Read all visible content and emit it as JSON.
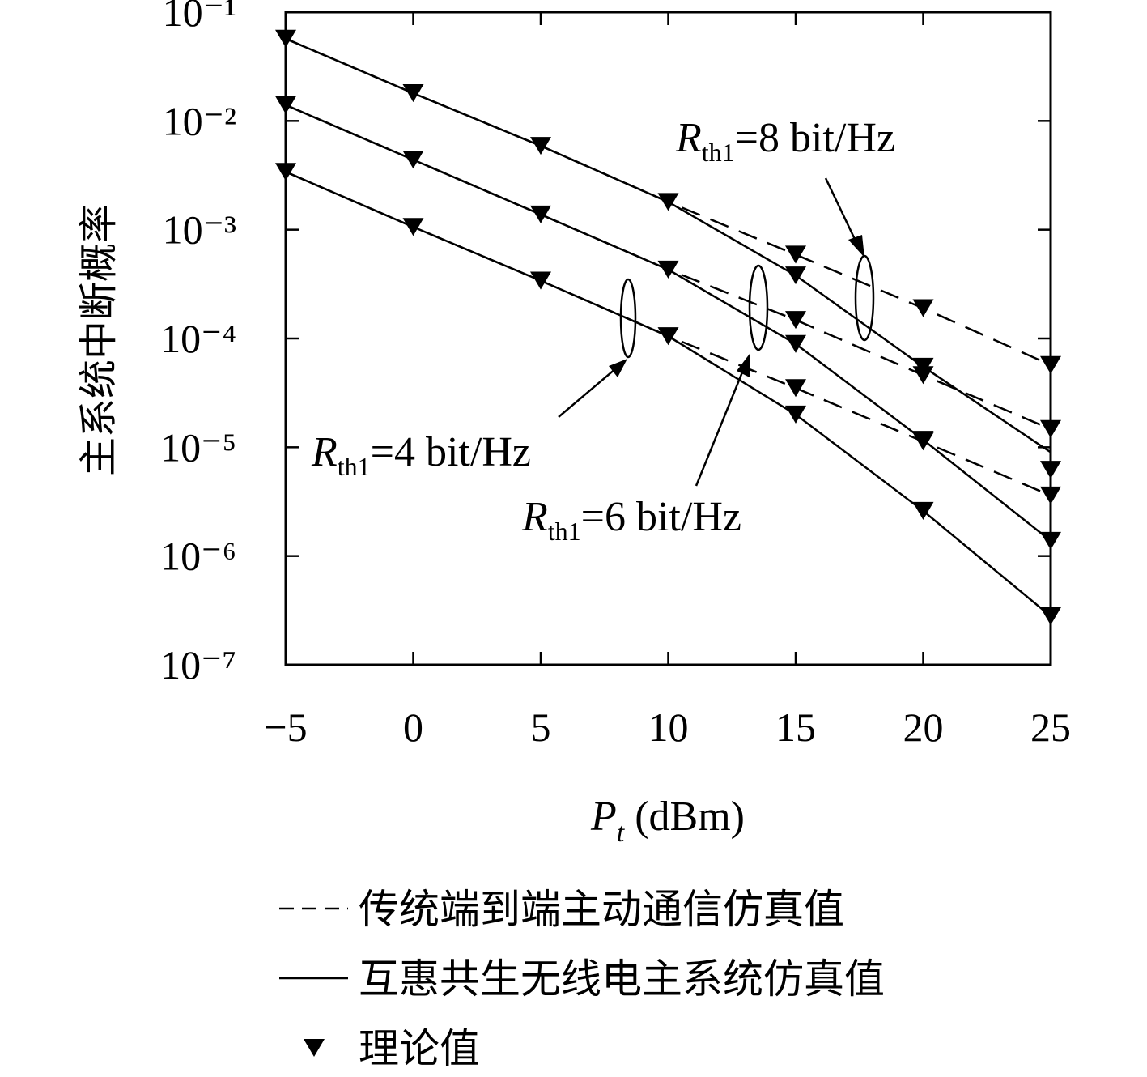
{
  "chart_data": {
    "type": "line",
    "log_y": true,
    "ylabel": "主系统中断概率",
    "xlabel": {
      "main": "P",
      "sub": "t",
      "rest": " (dBm)"
    },
    "x": [
      -5,
      0,
      5,
      10,
      15,
      20,
      25
    ],
    "xlim": [
      -5,
      25
    ],
    "xticks": [
      {
        "value": -5,
        "label": "−5"
      },
      0,
      5,
      10,
      15,
      20,
      25
    ],
    "ylim": [
      1e-07,
      0.1
    ],
    "yticks": [
      {
        "value": 0.1,
        "label": "10⁻¹"
      },
      {
        "value": 0.01,
        "label": "10⁻²"
      },
      {
        "value": 0.001,
        "label": "10⁻³"
      },
      {
        "value": 0.0001,
        "label": "10⁻⁴"
      },
      {
        "value": 1e-05,
        "label": "10⁻⁵"
      },
      {
        "value": 1e-06,
        "label": "10⁻⁶"
      },
      {
        "value": 1e-07,
        "label": "10⁻⁷"
      }
    ],
    "color": "#000000",
    "series": [
      {
        "name": "传统端到端主动通信仿真值",
        "style": "dashed",
        "lines": [
          [
            0.057,
            0.018,
            0.0059,
            0.0018,
            0.00059,
            0.00019,
            5.7e-05
          ],
          [
            0.014,
            0.0044,
            0.00138,
            0.00043,
            0.000148,
            4.6e-05,
            1.47e-05
          ],
          [
            0.0034,
            0.00106,
            0.00034,
            0.000105,
            3.5e-05,
            1.13e-05,
            3.6e-06
          ]
        ]
      },
      {
        "name": "互惠共生无线电主系统仿真值",
        "style": "solid",
        "lines": [
          [
            0.057,
            0.018,
            0.0059,
            0.0018,
            0.00038,
            5.5e-05,
            9e-06
          ],
          [
            0.014,
            0.0044,
            0.00138,
            0.00043,
            8.9e-05,
            1.17e-05,
            1.38e-06
          ],
          [
            0.0034,
            0.00106,
            0.00034,
            0.000105,
            2e-05,
            2.6e-06,
            2.8e-07
          ]
        ]
      },
      {
        "name": "理论值",
        "style": "marker",
        "lines": [
          [
            null,
            null,
            null,
            null,
            0.00059,
            0.00019,
            5.7e-05
          ],
          [
            null,
            null,
            null,
            null,
            0.000148,
            4.6e-05,
            1.47e-05
          ],
          [
            null,
            null,
            null,
            null,
            3.5e-05,
            1.13e-05,
            3.6e-06
          ],
          [
            0.057,
            0.018,
            0.0059,
            0.0018,
            0.00038,
            5.5e-05,
            6.2e-06
          ],
          [
            0.014,
            0.0044,
            0.00138,
            0.00043,
            8.9e-05,
            1.17e-05,
            1.38e-06
          ],
          [
            0.0034,
            0.00106,
            0.00034,
            0.000105,
            2e-05,
            2.6e-06,
            2.8e-07
          ]
        ]
      }
    ],
    "annotations": [
      {
        "main": "R",
        "sub": "th1",
        "rest": "=8 bit/Hz"
      },
      {
        "main": "R",
        "sub": "th1",
        "rest": "=6 bit/Hz"
      },
      {
        "main": "R",
        "sub": "th1",
        "rest": "=4 bit/Hz"
      }
    ]
  }
}
